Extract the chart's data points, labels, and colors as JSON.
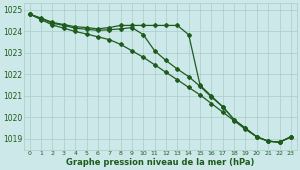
{
  "hours": [
    0,
    1,
    2,
    3,
    4,
    5,
    6,
    7,
    8,
    9,
    10,
    11,
    12,
    13,
    14,
    15,
    16,
    17,
    18,
    19,
    20,
    21,
    22,
    23
  ],
  "line1": [
    1024.8,
    1024.62,
    1024.42,
    1024.32,
    1024.22,
    1024.18,
    1024.12,
    1024.18,
    1024.28,
    1024.28,
    1024.28,
    1024.28,
    1024.28,
    1024.28,
    1023.85,
    1021.5,
    1021.0,
    1020.5,
    1019.9,
    1019.5,
    1019.1,
    1018.9,
    1018.85,
    1019.1
  ],
  "line2": [
    1024.8,
    1024.6,
    1024.38,
    1024.28,
    1024.15,
    1024.1,
    1024.05,
    1024.08,
    1024.12,
    1024.18,
    1023.85,
    1023.1,
    1022.65,
    1022.25,
    1021.9,
    1021.45,
    1020.95,
    1020.5,
    1019.9,
    1019.5,
    1019.1,
    1018.9,
    1018.85,
    1019.1
  ],
  "line3": [
    1024.8,
    1024.55,
    1024.3,
    1024.15,
    1024.0,
    1023.88,
    1023.75,
    1023.62,
    1023.4,
    1023.1,
    1022.8,
    1022.45,
    1022.1,
    1021.75,
    1021.4,
    1021.05,
    1020.65,
    1020.25,
    1019.85,
    1019.45,
    1019.1,
    1018.9,
    1018.85,
    1019.1
  ],
  "bg_color": "#cce8e8",
  "grid_color": "#aacccc",
  "line_color": "#1e5c1e",
  "xlabel": "Graphe pression niveau de la mer (hPa)",
  "ylim": [
    1018.5,
    1025.3
  ],
  "yticks": [
    1019,
    1020,
    1021,
    1022,
    1023,
    1024,
    1025
  ],
  "xlim": [
    -0.5,
    23.5
  ]
}
